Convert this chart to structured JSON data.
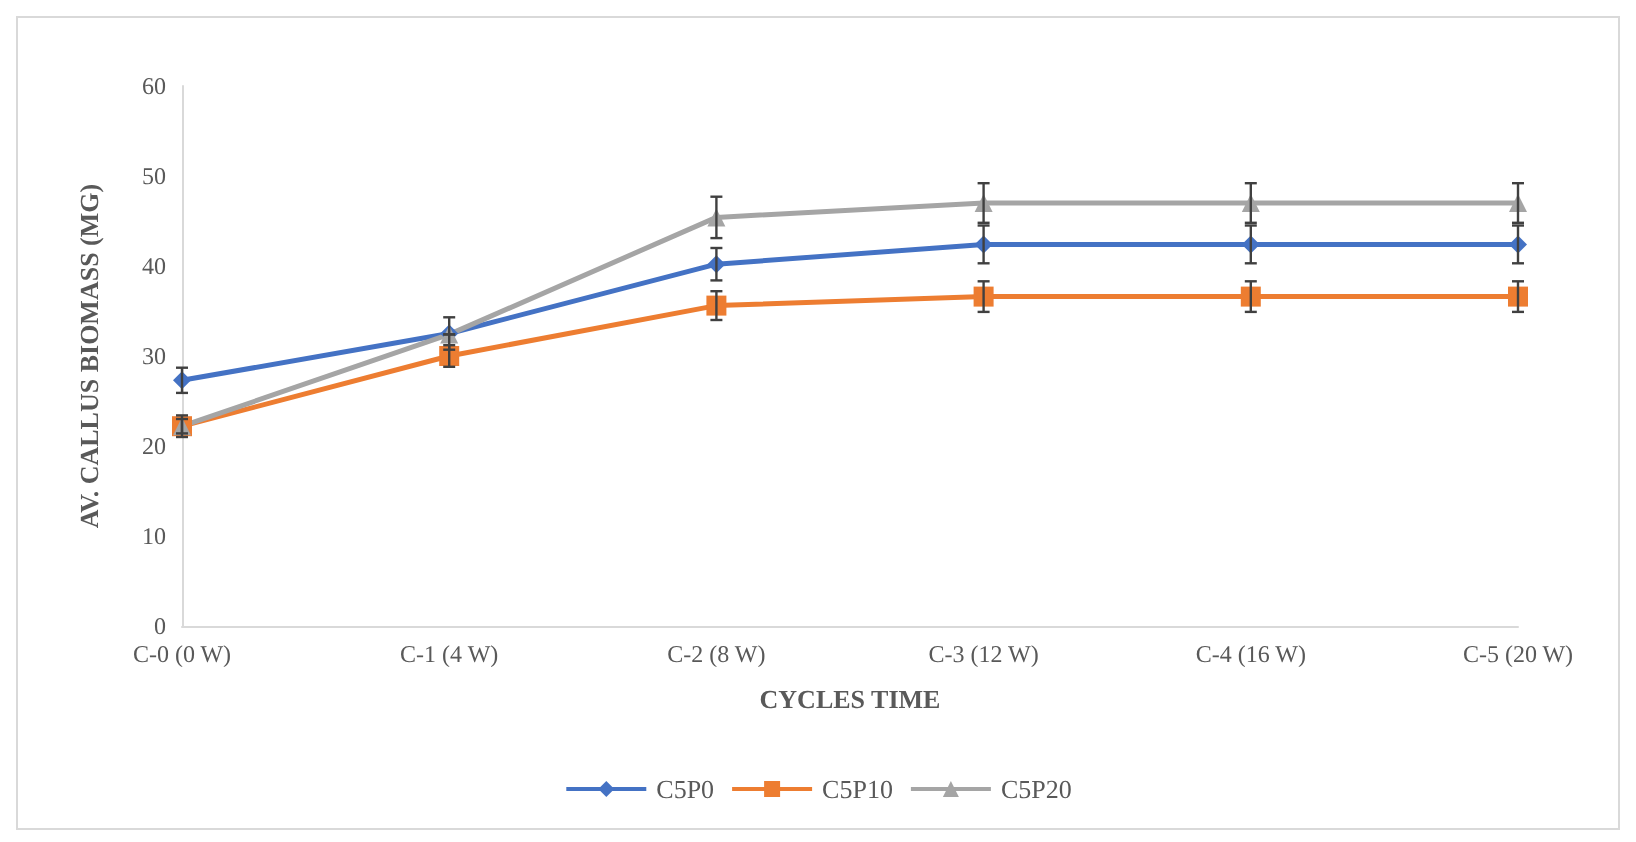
{
  "chart_data": {
    "type": "line",
    "xlabel": "CYCLES TIME",
    "ylabel": "AV. CALLUS BIOMASS (MG)",
    "categories": [
      "C-0 (0 W)",
      "C-1 (4 W)",
      "C-2 (8 W)",
      "C-3 (12 W)",
      "C-4 (16 W)",
      "C-5 (20 W)"
    ],
    "series": [
      {
        "name": "C5P0",
        "color": "#4472c4",
        "marker": "diamond",
        "values": [
          27.3,
          32.5,
          40.2,
          42.4,
          42.4,
          42.4
        ],
        "errors": [
          1.4,
          1.8,
          1.8,
          2.1,
          2.1,
          2.1
        ]
      },
      {
        "name": "C5P10",
        "color": "#ed7d31",
        "marker": "square",
        "values": [
          22.2,
          30.0,
          35.6,
          36.6,
          36.6,
          36.6
        ],
        "errors": [
          1.2,
          1.2,
          1.6,
          1.7,
          1.7,
          1.7
        ]
      },
      {
        "name": "C5P20",
        "color": "#a5a5a5",
        "marker": "triangle",
        "values": [
          22.2,
          32.4,
          45.4,
          47.0,
          47.0,
          47.0
        ],
        "errors": [
          0.8,
          null,
          2.3,
          2.2,
          2.2,
          2.2
        ]
      }
    ],
    "ylim": [
      0,
      60
    ],
    "yticks": [
      0,
      10,
      20,
      30,
      40,
      50,
      60
    ],
    "grid": false,
    "legend": "bottom",
    "line_style": "solid"
  }
}
